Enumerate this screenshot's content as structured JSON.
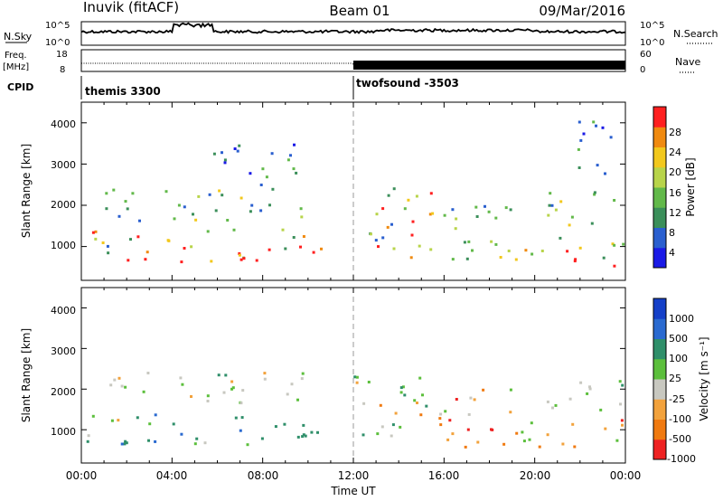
{
  "header": {
    "station": "Inuvik (fitACF)",
    "beam": "Beam 01",
    "date": "09/Mar/2016"
  },
  "noise_panel": {
    "left_label": "N.Sky",
    "left_ticks": [
      "10^5",
      "10^0"
    ],
    "right_label": "N.Search",
    "right_ticks": [
      "10^5",
      "10^0"
    ]
  },
  "freq_panel": {
    "left_label_1": "Freq.",
    "left_label_2": "[MHz]",
    "left_ticks": [
      "18",
      "8"
    ],
    "right_label": "Nave",
    "right_ticks": [
      "60",
      "0"
    ]
  },
  "cpid_panel": {
    "label": "CPID",
    "programs": [
      {
        "name": "themis 3300",
        "start_hour": 0
      },
      {
        "name": "twofsound -3503",
        "start_hour": 12
      }
    ]
  },
  "chart_data": [
    {
      "type": "heatmap",
      "title": "Power",
      "ylabel": "Slant Range [km]",
      "xlabel": "Time UT",
      "ylim": [
        180,
        4500
      ],
      "xlim_hours": [
        0,
        24
      ],
      "yticks": [
        "1000",
        "2000",
        "3000",
        "4000"
      ],
      "colorbar": {
        "label": "Power [dB]",
        "ticks": [
          "4",
          "8",
          "12",
          "16",
          "20",
          "24",
          "28"
        ],
        "range": [
          0,
          32
        ],
        "colors": [
          "#1a1ae6",
          "#2a5fcf",
          "#3b8f5a",
          "#62b94a",
          "#b8d44a",
          "#f2c81d",
          "#f08a10",
          "#ff2020"
        ]
      },
      "echo_bands": [
        {
          "t0": 0,
          "t1": 10.6,
          "r_lo": 650,
          "r_hi": 1450,
          "level": "high"
        },
        {
          "t0": 1,
          "t1": 10,
          "r_lo": 1650,
          "r_hi": 2450,
          "level": "medium"
        },
        {
          "t0": 5.5,
          "t1": 9.8,
          "r_lo": 2500,
          "r_hi": 3500,
          "level": "low"
        },
        {
          "t0": 12,
          "t1": 15.5,
          "r_lo": 750,
          "r_hi": 2450,
          "level": "high"
        },
        {
          "t0": 15.5,
          "t1": 19,
          "r_lo": 600,
          "r_hi": 2100,
          "level": "medium"
        },
        {
          "t0": 19,
          "t1": 24,
          "r_lo": 550,
          "r_hi": 1300,
          "level": "high"
        },
        {
          "t0": 20.5,
          "t1": 24,
          "r_lo": 1500,
          "r_hi": 2400,
          "level": "medium"
        },
        {
          "t0": 21.8,
          "t1": 23.5,
          "r_lo": 2800,
          "r_hi": 4500,
          "level": "low"
        }
      ]
    },
    {
      "type": "heatmap",
      "title": "Velocity",
      "ylabel": "Slant Range [km]",
      "xlabel": "Time UT",
      "ylim": [
        180,
        4500
      ],
      "xlim_hours": [
        0,
        24
      ],
      "yticks": [
        "1000",
        "2000",
        "3000",
        "4000"
      ],
      "xticks": [
        "00:00",
        "04:00",
        "08:00",
        "12:00",
        "16:00",
        "20:00",
        "00:00"
      ],
      "colorbar": {
        "label": "Velocity [m s⁻¹]",
        "ticks": [
          "1000",
          "500",
          "100",
          "25",
          "-25",
          "-100",
          "-500",
          "-1000"
        ],
        "colors": [
          "#1540c8",
          "#2a6ad0",
          "#2f8f6a",
          "#5cbf3c",
          "#c8c8c0",
          "#f2a23c",
          "#f07a10",
          "#ee2222"
        ]
      },
      "echo_bands": [
        {
          "t0": 0,
          "t1": 10.6,
          "r_lo": 650,
          "r_hi": 1450,
          "flow": "toward"
        },
        {
          "t0": 1,
          "t1": 10,
          "r_lo": 1650,
          "r_hi": 2450,
          "flow": "zero"
        },
        {
          "t0": 12,
          "t1": 15.5,
          "r_lo": 750,
          "r_hi": 2450,
          "flow": "mixed"
        },
        {
          "t0": 15.5,
          "t1": 19,
          "r_lo": 600,
          "r_hi": 2100,
          "flow": "away"
        },
        {
          "t0": 19,
          "t1": 24,
          "r_lo": 550,
          "r_hi": 1300,
          "flow": "away"
        },
        {
          "t0": 20.5,
          "t1": 24,
          "r_lo": 1500,
          "r_hi": 2400,
          "flow": "zero"
        }
      ]
    }
  ]
}
